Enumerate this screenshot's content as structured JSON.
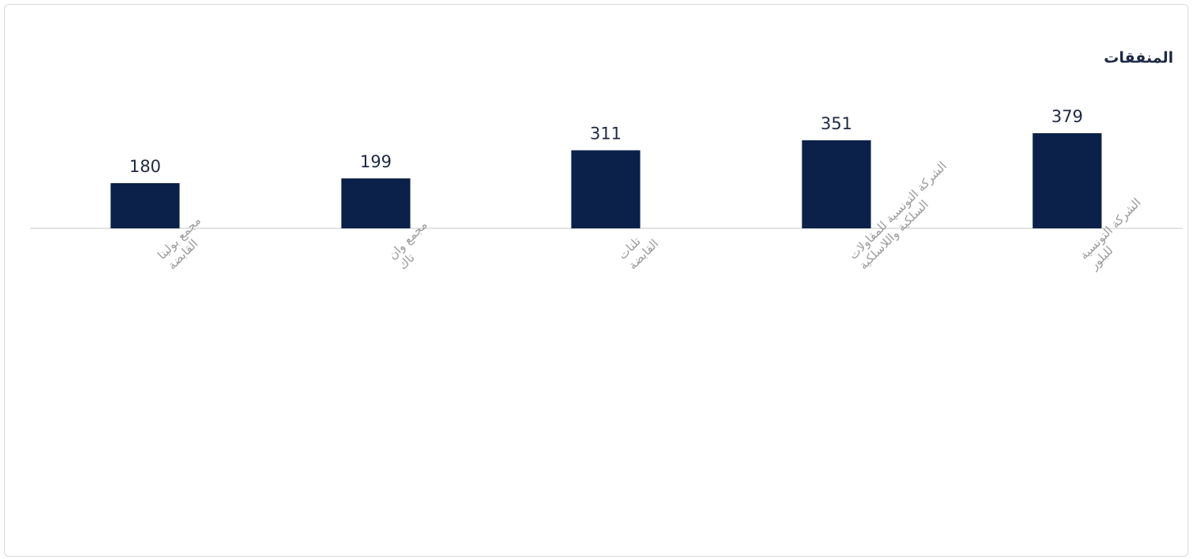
{
  "chart_data": {
    "type": "bar",
    "title": "المنفقات",
    "categories": [
      [
        "مجمع بولينا",
        "القابضة"
      ],
      [
        "مجمع وان",
        "تاك"
      ],
      [
        "تلنات",
        "القابضة"
      ],
      [
        "الشركة التونسية للمقاولات",
        "السلكية واللاسلكية"
      ],
      [
        "الشركة التونسية",
        "للبلور"
      ]
    ],
    "values": [
      180,
      199,
      311,
      351,
      379
    ],
    "ylim": [
      0,
      379
    ],
    "grid": false,
    "legend": "none",
    "bar_color": "#0b2149",
    "axis_color": "#d9d9d9"
  }
}
